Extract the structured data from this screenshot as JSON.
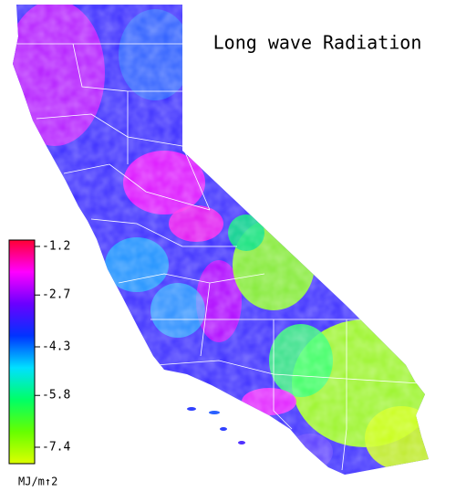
{
  "title": "Long wave Radiation",
  "colorbar": {
    "ticks": [
      -1.2,
      -2.7,
      -4.3,
      -5.8,
      -7.4
    ],
    "unit": "MJ/m↑2",
    "colors": [
      "#ff0033",
      "#ff00ff",
      "#6a00ff",
      "#0033ff",
      "#00e0ff",
      "#00ff66",
      "#66ff00",
      "#ddff00"
    ]
  }
}
